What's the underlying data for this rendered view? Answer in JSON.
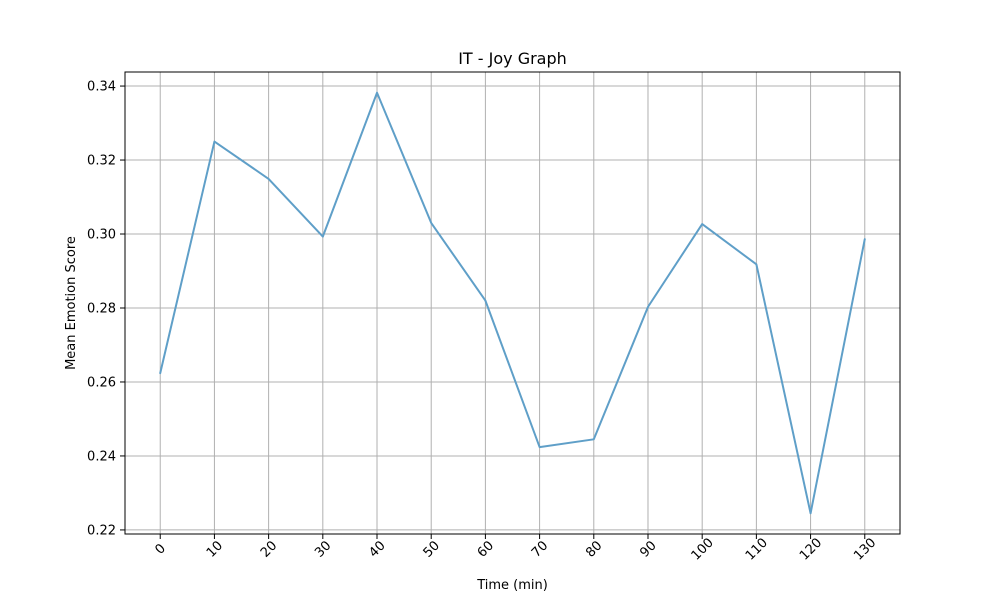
{
  "chart_data": {
    "type": "line",
    "title": "IT - Joy Graph",
    "xlabel": "Time (min)",
    "ylabel": "Mean Emotion Score",
    "x": [
      0,
      10,
      20,
      30,
      40,
      50,
      60,
      70,
      80,
      90,
      100,
      110,
      120,
      130
    ],
    "series": [
      {
        "name": "",
        "values": [
          0.2624,
          0.325,
          0.3149,
          0.2993,
          0.3382,
          0.303,
          0.282,
          0.2424,
          0.2445,
          0.2803,
          0.3027,
          0.2918,
          0.2245,
          0.2986
        ],
        "color": "#5f9fc8"
      }
    ],
    "xticks": [
      "0",
      "10",
      "20",
      "30",
      "40",
      "50",
      "60",
      "70",
      "80",
      "90",
      "100",
      "110",
      "120",
      "130"
    ],
    "yticks": [
      "0.22",
      "0.24",
      "0.26",
      "0.28",
      "0.30",
      "0.32",
      "0.34"
    ],
    "xlim": [
      -6.5,
      136.5
    ],
    "ylim": [
      0.2189,
      0.3438
    ],
    "grid": true
  }
}
